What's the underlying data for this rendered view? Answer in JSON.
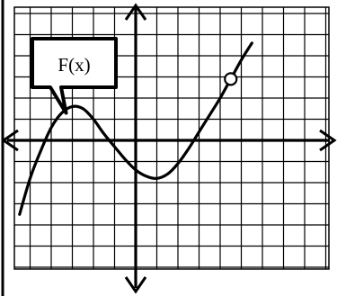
{
  "chart_data": {
    "type": "line",
    "title": "",
    "xlabel": "",
    "ylabel": "",
    "xlim": [
      -7.0,
      9.6
    ],
    "ylim": [
      -6.0,
      5.6
    ],
    "grid": true,
    "legend": "none",
    "series": [
      {
        "name": "F(x)",
        "x": [
          -5.5,
          -5.0,
          -4.5,
          -4.0,
          -3.5,
          -3.0,
          -2.5,
          -2.0,
          -1.5,
          -1.0,
          -0.5,
          0.0,
          0.5,
          1.0,
          1.5,
          2.0,
          2.5,
          3.0,
          3.5,
          4.0,
          4.5,
          5.0,
          5.5
        ],
        "y": [
          -3.5,
          -1.8,
          -0.5,
          0.6,
          1.3,
          1.6,
          1.5,
          1.0,
          0.3,
          -0.3,
          -0.9,
          -1.4,
          -1.7,
          -1.8,
          -1.6,
          -1.1,
          -0.4,
          0.4,
          1.2,
          2.0,
          2.9,
          3.8,
          4.6
        ]
      }
    ],
    "open_point": {
      "x": 4.5,
      "y": 2.9
    },
    "callout": {
      "text": "F(x)",
      "points_to": {
        "x": -3.3,
        "y": 1.3
      }
    }
  },
  "colors": {
    "ink": "#000000",
    "grid": "#000000",
    "background": "#ffffff",
    "open_point_fill": "#ffffff"
  }
}
